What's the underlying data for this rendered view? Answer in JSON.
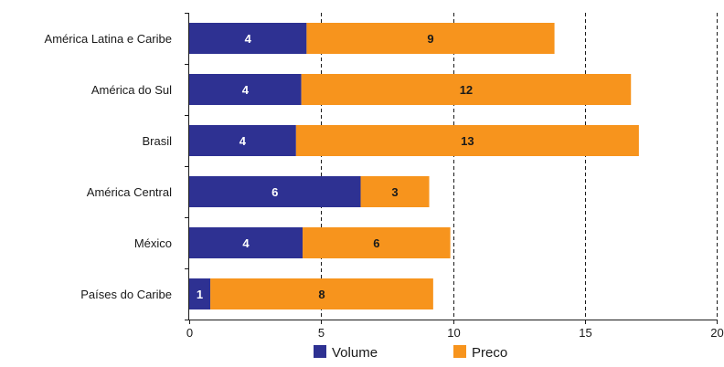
{
  "chart_data": {
    "type": "bar",
    "orientation": "horizontal",
    "stacked": true,
    "categories": [
      "América Latina e Caribe",
      "América do Sul",
      "Brasil",
      "América Central",
      "México",
      "Países do Caribe"
    ],
    "series": [
      {
        "name": "Volume",
        "color": "#2e3192",
        "values": [
          4.45,
          4.25,
          4.05,
          6.5,
          4.3,
          0.8
        ],
        "labels": [
          "4",
          "4",
          "4",
          "6",
          "4",
          "1"
        ],
        "label_color": "#ffffff"
      },
      {
        "name": "Preco",
        "color": "#f7941d",
        "values": [
          9.4,
          12.5,
          13.0,
          2.6,
          5.6,
          8.45
        ],
        "labels": [
          "9",
          "12",
          "13",
          "3",
          "6",
          "8"
        ],
        "label_color": "#1a1a1a"
      }
    ],
    "xlim": [
      0,
      20
    ],
    "xticks": [
      "0",
      "5",
      "10",
      "15",
      "20"
    ],
    "grid": "vertical dashed",
    "legend_position": "bottom",
    "xlabel": "",
    "ylabel": "",
    "title": ""
  }
}
